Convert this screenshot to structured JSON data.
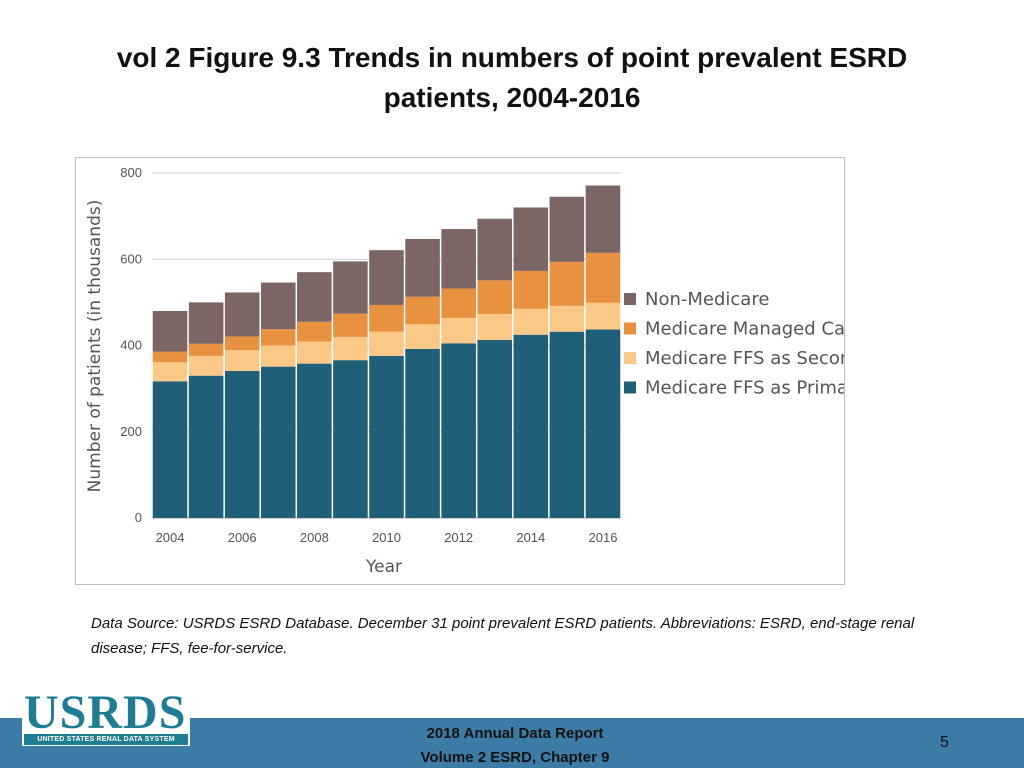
{
  "slide": {
    "title": "vol 2 Figure 9.3 Trends in numbers of point prevalent ESRD patients, 2004-2016",
    "data_source": "Data Source: USRDS ESRD Database. December 31 point prevalent ESRD patients. Abbreviations: ESRD, end-stage renal disease; FFS, fee-for-service.",
    "footer_line1": "2018 Annual Data Report",
    "footer_line2": "Volume 2 ESRD, Chapter 9",
    "page_number": "5",
    "logo_text": "USRDS",
    "logo_subtext": "UNITED STATES RENAL DATA SYSTEM"
  },
  "chart_data": {
    "type": "bar",
    "stacked": true,
    "title": "",
    "xlabel": "Year",
    "ylabel": "Number of patients (in thousands)",
    "ylim": [
      0,
      800
    ],
    "yticks": [
      0,
      200,
      400,
      600,
      800
    ],
    "categories": [
      "2004",
      "2005",
      "2006",
      "2007",
      "2008",
      "2009",
      "2010",
      "2011",
      "2012",
      "2013",
      "2014",
      "2015",
      "2016"
    ],
    "xtick_labels": [
      "2004",
      "2006",
      "2008",
      "2010",
      "2012",
      "2014",
      "2016"
    ],
    "series": [
      {
        "name": "Medicare FFS as Primary Payer",
        "color": "#1f5f78",
        "values": [
          317,
          330,
          341,
          351,
          358,
          366,
          376,
          392,
          405,
          413,
          425,
          432,
          437
        ]
      },
      {
        "name": "Medicare FFS as Secondary Payer",
        "color": "#fbc987",
        "values": [
          44,
          46,
          48,
          49,
          51,
          54,
          56,
          57,
          59,
          60,
          60,
          60,
          62
        ]
      },
      {
        "name": "Medicare Managed Care",
        "color": "#e8913e",
        "values": [
          25,
          28,
          32,
          38,
          46,
          54,
          62,
          64,
          68,
          78,
          88,
          102,
          116
        ]
      },
      {
        "name": "Non-Medicare",
        "color": "#7c6665",
        "values": [
          94,
          96,
          102,
          108,
          115,
          121,
          127,
          134,
          138,
          143,
          147,
          151,
          156
        ]
      }
    ],
    "legend_order": [
      "Non-Medicare",
      "Medicare Managed Care",
      "Medicare FFS as Secondary Payer",
      "Medicare FFS as Primary Payer"
    ],
    "legend_position": "right",
    "grid": true
  }
}
